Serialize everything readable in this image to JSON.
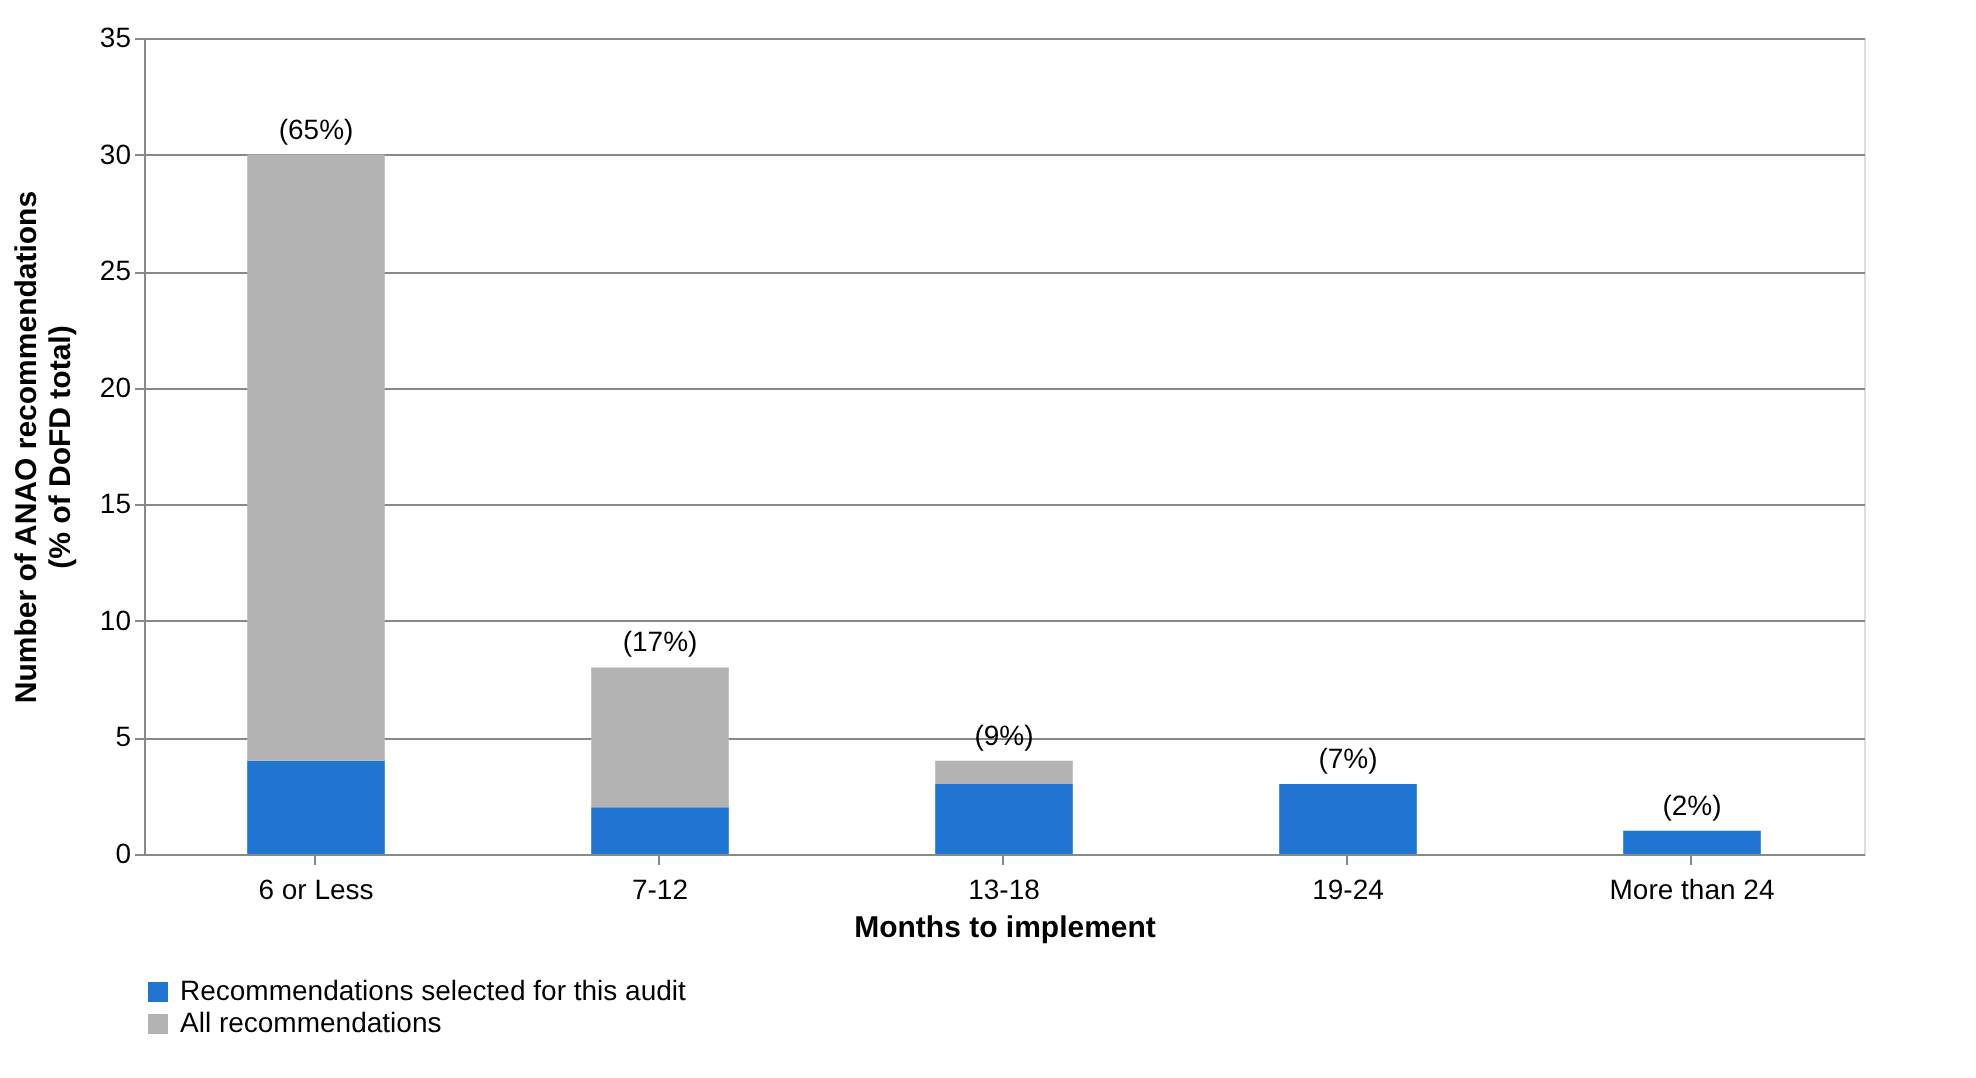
{
  "chart_data": {
    "type": "bar",
    "stacked": true,
    "xlabel": "Months to implement",
    "ylabel": "Number of ANAO recommendations\n(% of DoFD total)",
    "categories": [
      "6 or Less",
      "7-12",
      "13-18",
      "19-24",
      "More than 24"
    ],
    "series": [
      {
        "name": "Recommendations selected for this audit",
        "color": "#1f75d0",
        "values": [
          4,
          2,
          3,
          3,
          1
        ]
      },
      {
        "name": "All recommendations",
        "color": "#b3b3b3",
        "values": [
          26,
          6,
          1,
          0,
          0
        ]
      }
    ],
    "annotations": [
      {
        "text": "(65%)",
        "x": "6 or Less",
        "y": 30
      },
      {
        "text": "(17%)",
        "x": "7-12",
        "y": 8
      },
      {
        "text": "(9%)",
        "x": "13-18",
        "y": 4
      },
      {
        "text": "(7%)",
        "x": "19-24",
        "y": 3
      },
      {
        "text": "(2%)",
        "x": "More than 24",
        "y": 1
      }
    ],
    "ylim": [
      0,
      35
    ],
    "yticks": [
      0,
      5,
      10,
      15,
      20,
      25,
      30,
      35
    ],
    "grid": "y",
    "legend": "bottom left"
  }
}
